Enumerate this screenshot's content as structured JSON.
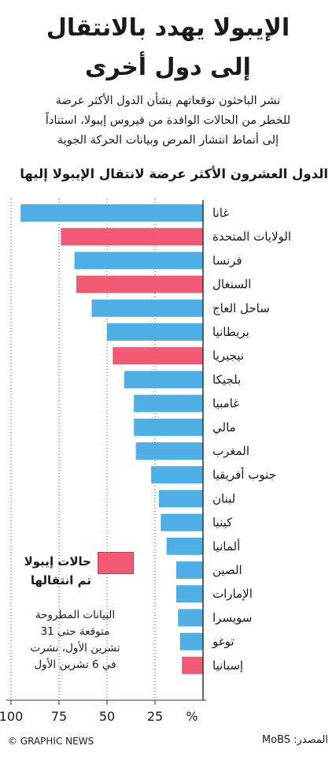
{
  "title": {
    "line1": "الإيبولا يهدد بالانتقال",
    "line2": "إلى دول أخرى"
  },
  "subtitle": {
    "line1": "نشر الباحثون توقعاتهم بشأن الدول الأكثر عرضة",
    "line2": "للخطر من الحالات الوافدة من فيروس إيبولا، استناداً",
    "line3": "إلى أنماط انتشار المرض وبيانات الحركة الجوية"
  },
  "chart_heading": "الدول العشرون الأكثر عرضة لانتقال الإيبولا إليها",
  "legend": {
    "label_line1": "حالات إيبولا",
    "label_line2": "تم انتقالها",
    "color": "#f05a73"
  },
  "note": {
    "line1": "البيانات المطروحة",
    "line2": "متوقعة حتى 31",
    "line3": "تشرين الأول، نشرت",
    "line4": "في 6 تشرين الأول"
  },
  "credit": "© GRAPHIC NEWS",
  "source": "المصدر: MoBS",
  "chart_data": {
    "type": "bar",
    "orientation": "horizontal",
    "bar_direction": "right-to-left",
    "categories": [
      "غانا",
      "الولايات المتحدة",
      "فرنسا",
      "السنغال",
      "ساحل العاج",
      "بريطانيا",
      "نيجيريا",
      "بلجيكا",
      "غامبيا",
      "مالي",
      "المغرب",
      "جنوب أفريقيا",
      "لبنان",
      "كينيا",
      "ألمانيا",
      "الصين",
      "الإمارات",
      "سويسرا",
      "توغو",
      "إسبانيا"
    ],
    "values": [
      95,
      74,
      67,
      66,
      58,
      50,
      47,
      41,
      36,
      36,
      35,
      27,
      23,
      22,
      19,
      14,
      14,
      13,
      12,
      11
    ],
    "imported": [
      false,
      true,
      false,
      true,
      false,
      false,
      true,
      false,
      false,
      false,
      false,
      false,
      false,
      false,
      false,
      false,
      false,
      false,
      false,
      true
    ],
    "x_ticks": [
      100,
      75,
      50,
      25
    ],
    "x_unit_label": "%",
    "xlim": [
      0,
      100
    ],
    "grid": true,
    "colors": {
      "normal": "#4eaee6",
      "imported": "#f05a73"
    }
  }
}
